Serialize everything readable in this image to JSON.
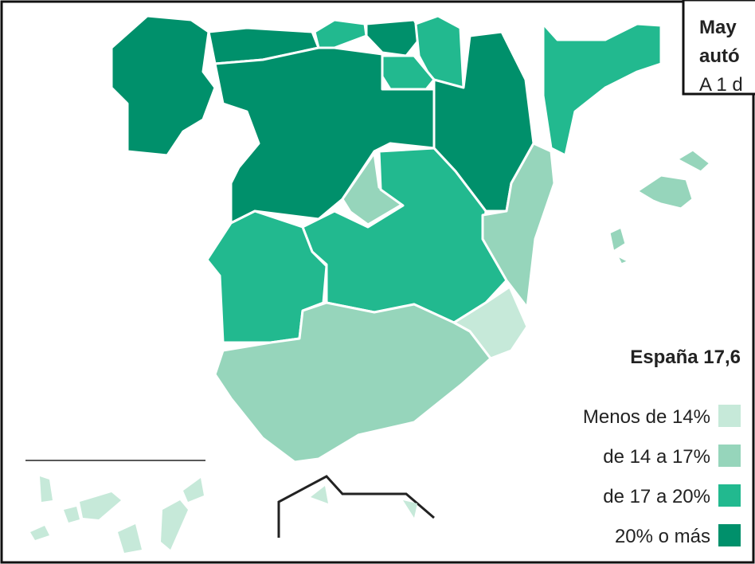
{
  "title": {
    "lines": [
      "May",
      "autó",
      "A 1 d"
    ]
  },
  "legend": {
    "title": "España 17,6",
    "items": [
      {
        "label": "Menos de 14%",
        "color": "#c6e9d9"
      },
      {
        "label": "de 14 a 17%",
        "color": "#96d5bb"
      },
      {
        "label": "de 17 a 20%",
        "color": "#22b98f"
      },
      {
        "label": "20% o más",
        "color": "#00906b"
      }
    ]
  }
}
